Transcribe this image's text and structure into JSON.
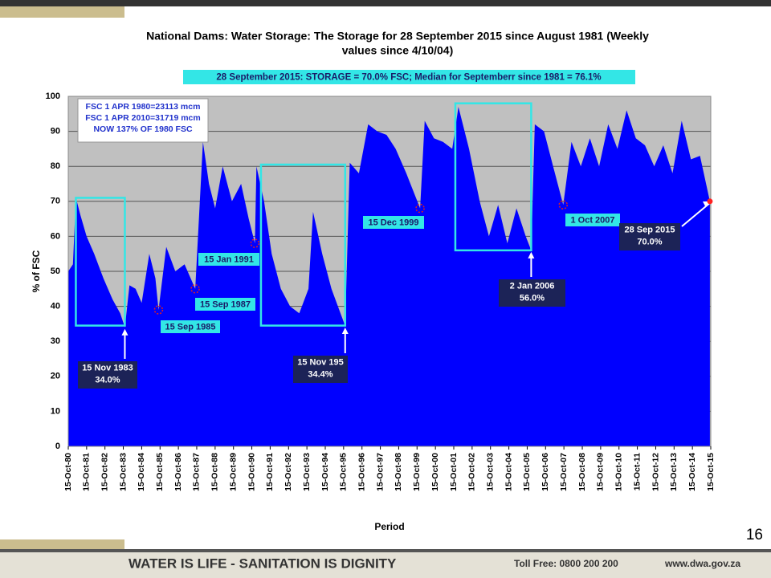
{
  "slide": {
    "page_number": "16",
    "footer": "WATER IS LIFE - SANITATION IS DIGNITY",
    "toll_free": "Toll Free: 0800 200 200",
    "website": "www.dwa.gov.za"
  },
  "chart_data": {
    "type": "area",
    "title": [
      "National Dams: Water Storage: The Storage for 28 September 2015 since August 1981 (Weekly",
      "values since 4/10/04)"
    ],
    "subtitle": "28  September 2015:  STORAGE  = 70.0%  FSC; Median for Septemberr since 1981 = 76.1%",
    "info": [
      "FSC 1 APR 1980=23113 mcm",
      "FSC 1 APR 2010=31719 mcm",
      "NOW 137% OF 1980 FSC"
    ],
    "ylabel": "% of FSC",
    "xlabel": "Period",
    "color": "#0000ff",
    "background": "#c0c0c0",
    "grid": true,
    "ylim": [
      0,
      100
    ],
    "yticks": [
      0,
      10,
      20,
      30,
      40,
      50,
      60,
      70,
      80,
      90,
      100
    ],
    "xlim": [
      "1980-10-15",
      "2015-10-15"
    ],
    "xticks": [
      {
        "value": "1980-10-15",
        "label": "15-Oct-80"
      },
      {
        "value": "1981-10-15",
        "label": "15-Oct-81"
      },
      {
        "value": "1982-10-15",
        "label": "15-Oct-82"
      },
      {
        "value": "1983-10-15",
        "label": "15-Oct-83"
      },
      {
        "value": "1984-10-15",
        "label": "15-Oct-84"
      },
      {
        "value": "1985-10-15",
        "label": "15-Oct-85"
      },
      {
        "value": "1986-10-15",
        "label": "15-Oct-86"
      },
      {
        "value": "1987-10-15",
        "label": "15-Oct-87"
      },
      {
        "value": "1988-10-15",
        "label": "15-Oct-88"
      },
      {
        "value": "1989-10-15",
        "label": "15-Oct-89"
      },
      {
        "value": "1990-10-15",
        "label": "15-Oct-90"
      },
      {
        "value": "1991-10-15",
        "label": "15-Oct-91"
      },
      {
        "value": "1992-10-15",
        "label": "15-Oct-92"
      },
      {
        "value": "1993-10-15",
        "label": "15-Oct-93"
      },
      {
        "value": "1994-10-15",
        "label": "15-Oct-94"
      },
      {
        "value": "1995-10-15",
        "label": "15-Oct-95"
      },
      {
        "value": "1996-10-15",
        "label": "15-Oct-96"
      },
      {
        "value": "1997-10-15",
        "label": "15-Oct-97"
      },
      {
        "value": "1998-10-15",
        "label": "15-Oct-98"
      },
      {
        "value": "1999-10-15",
        "label": "15-Oct-99"
      },
      {
        "value": "2000-10-15",
        "label": "15-Oct-00"
      },
      {
        "value": "2001-10-15",
        "label": "15-Oct-01"
      },
      {
        "value": "2002-10-15",
        "label": "15-Oct-02"
      },
      {
        "value": "2003-10-15",
        "label": "15-Oct-03"
      },
      {
        "value": "2004-10-15",
        "label": "15-Oct-04"
      },
      {
        "value": "2005-10-15",
        "label": "15-Oct-05"
      },
      {
        "value": "2006-10-15",
        "label": "15-Oct-06"
      },
      {
        "value": "2007-10-15",
        "label": "15-Oct-07"
      },
      {
        "value": "2008-10-15",
        "label": "15-Oct-08"
      },
      {
        "value": "2009-10-15",
        "label": "15-Oct-09"
      },
      {
        "value": "2010-10-15",
        "label": "15-Oct-10"
      },
      {
        "value": "2011-10-15",
        "label": "15-Oct-11"
      },
      {
        "value": "2012-10-15",
        "label": "15-Oct-12"
      },
      {
        "value": "2013-10-15",
        "label": "15-Oct-13"
      },
      {
        "value": "2014-10-15",
        "label": "15-Oct-14"
      },
      {
        "value": "2015-10-15",
        "label": "15-Oct-15"
      }
    ],
    "x": [
      "1980-10-15",
      "1981-01-15",
      "1981-03-15",
      "1981-06-15",
      "1981-10-15",
      "1982-03-15",
      "1982-09-15",
      "1983-03-15",
      "1983-08-15",
      "1983-11-15",
      "1984-02-15",
      "1984-06-15",
      "1984-10-15",
      "1985-03-15",
      "1985-07-15",
      "1985-09-15",
      "1986-02-15",
      "1986-08-15",
      "1987-02-15",
      "1987-09-15",
      "1988-02-15",
      "1988-06-15",
      "1988-10-15",
      "1989-03-15",
      "1989-09-15",
      "1990-03-15",
      "1990-08-15",
      "1990-12-15",
      "1991-01-15",
      "1991-06-15",
      "1991-11-15",
      "1992-05-15",
      "1992-11-15",
      "1993-05-15",
      "1993-11-15",
      "1994-02-15",
      "1994-08-15",
      "1995-02-15",
      "1995-11-15",
      "1996-02-15",
      "1996-08-15",
      "1997-02-15",
      "1997-08-15",
      "1998-02-15",
      "1998-08-15",
      "1999-03-15",
      "1999-12-15",
      "2000-03-15",
      "2000-09-15",
      "2001-03-15",
      "2001-09-15",
      "2002-01-15",
      "2002-08-15",
      "2003-03-15",
      "2003-09-15",
      "2004-03-15",
      "2004-09-15",
      "2005-03-15",
      "2005-09-15",
      "2006-01-02",
      "2006-03-15",
      "2006-09-15",
      "2007-03-15",
      "2007-10-01",
      "2008-03-15",
      "2008-09-15",
      "2009-03-15",
      "2009-09-15",
      "2010-03-15",
      "2010-09-15",
      "2011-03-15",
      "2011-09-15",
      "2012-03-15",
      "2012-09-15",
      "2013-03-15",
      "2013-09-15",
      "2014-03-15",
      "2014-09-15",
      "2015-03-15",
      "2015-09-28"
    ],
    "values": [
      50,
      52,
      71,
      66,
      60,
      55,
      48,
      42,
      38,
      34,
      46,
      45,
      41,
      55,
      48,
      39,
      57,
      50,
      52,
      45,
      87,
      75,
      68,
      80,
      70,
      75,
      65,
      58,
      80,
      70,
      55,
      45,
      40,
      38,
      45,
      67,
      55,
      45,
      34.4,
      81,
      78,
      92,
      90,
      89,
      85,
      78,
      68,
      93,
      88,
      87,
      85,
      97,
      85,
      70,
      60,
      69,
      58,
      68,
      60,
      56,
      92,
      90,
      80,
      69,
      87,
      80,
      88,
      80,
      92,
      85,
      96,
      88,
      86,
      80,
      86,
      78,
      93,
      82,
      83,
      70
    ],
    "boxes": [
      {
        "x0": "1981-03-15",
        "x1": "1983-11-15",
        "y0": 34.5,
        "y1": 71
      },
      {
        "x0": "1991-04-15",
        "x1": "1995-11-15",
        "y0": 34.5,
        "y1": 80.5
      },
      {
        "x0": "2001-11-15",
        "x1": "2006-01-02",
        "y0": 56,
        "y1": 98
      }
    ],
    "annotations": [
      {
        "lines": [
          "15 Nov  1983",
          "34.0%"
        ],
        "x": "1983-11-15",
        "y": 34,
        "style": "arrow"
      },
      {
        "lines": [
          "15 Sep 1985"
        ],
        "x": "1985-09-15",
        "y": 39,
        "style": "circle"
      },
      {
        "lines": [
          "15 Sep 1987"
        ],
        "x": "1987-09-15",
        "y": 45,
        "style": "circle"
      },
      {
        "lines": [
          "15 Jan 1991"
        ],
        "x": "1990-12-15",
        "y": 58,
        "style": "circle"
      },
      {
        "lines": [
          "15 Nov  195",
          "34.4%"
        ],
        "x": "1995-11-15",
        "y": 34.4,
        "style": "arrow"
      },
      {
        "lines": [
          "15 Dec 1999"
        ],
        "x": "1999-12-15",
        "y": 68,
        "style": "circle"
      },
      {
        "lines": [
          "2 Jan 2006",
          "56.0%"
        ],
        "x": "2006-01-02",
        "y": 56,
        "style": "arrow"
      },
      {
        "lines": [
          "1 Oct 2007"
        ],
        "x": "2007-10-01",
        "y": 69,
        "style": "circle"
      },
      {
        "lines": [
          "28 Sep 2015",
          "70.0%"
        ],
        "x": "2015-09-28",
        "y": 70,
        "style": "arrow"
      }
    ]
  }
}
